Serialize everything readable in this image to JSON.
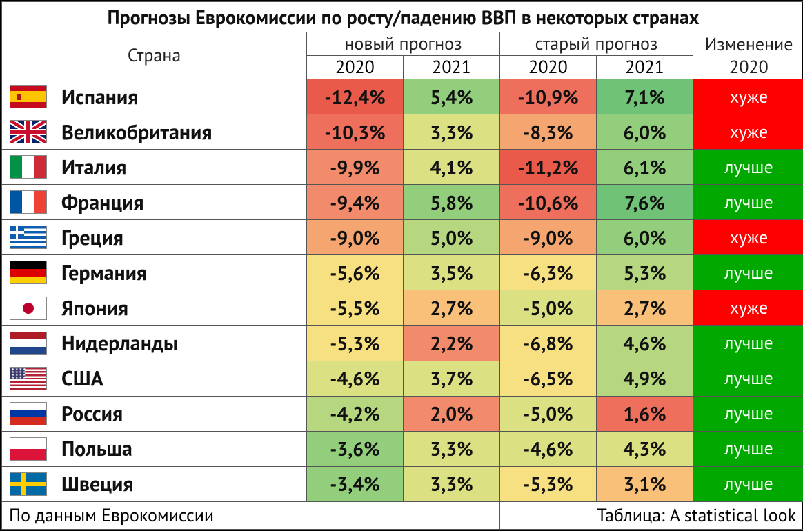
{
  "title": "Прогнозы Еврокомиссии по росту/падению ВВП в некоторых странах",
  "headers": {
    "country": "Страна",
    "new_forecast": "новый прогноз",
    "old_forecast": "старый прогноз",
    "change": "Изменение 2020",
    "y2020": "2020",
    "y2021": "2021"
  },
  "footer_left": "По данным Еврокомиссии",
  "footer_right": "Таблица: A statistical look",
  "change_colors": {
    "worse": "#ff0000",
    "better": "#00a800"
  },
  "change_labels": {
    "worse": "хуже",
    "better": "лучше"
  },
  "heat_palette": {
    "deep_red": "#ea5a4a",
    "red": "#ee6f5c",
    "orange_red": "#f28b6c",
    "orange": "#f5a670",
    "lt_orange": "#f9c07a",
    "yellow": "#f7e082",
    "yel_green": "#dbe082",
    "lt_green": "#b6d77f",
    "green": "#92ce7b",
    "deep_green": "#70c376"
  },
  "rows": [
    {
      "flag": "es",
      "country": "Испания",
      "new2020": "-12,4%",
      "new2020_c": "deep_red",
      "new2021": "5,4%",
      "new2021_c": "green",
      "old2020": "-10,9%",
      "old2020_c": "red",
      "old2021": "7,1%",
      "old2021_c": "deep_green",
      "change": "worse"
    },
    {
      "flag": "gb",
      "country": "Великобритания",
      "new2020": "-10,3%",
      "new2020_c": "red",
      "new2021": "3,3%",
      "new2021_c": "yel_green",
      "old2020": "-8,3%",
      "old2020_c": "orange",
      "old2021": "6,0%",
      "old2021_c": "green",
      "change": "worse"
    },
    {
      "flag": "it",
      "country": "Италия",
      "new2020": "-9,9%",
      "new2020_c": "orange_red",
      "new2021": "4,1%",
      "new2021_c": "yel_green",
      "old2020": "-11,2%",
      "old2020_c": "deep_red",
      "old2021": "6,1%",
      "old2021_c": "green",
      "change": "better"
    },
    {
      "flag": "fr",
      "country": "Франция",
      "new2020": "-9,4%",
      "new2020_c": "orange_red",
      "new2021": "5,8%",
      "new2021_c": "green",
      "old2020": "-10,6%",
      "old2020_c": "red",
      "old2021": "7,6%",
      "old2021_c": "deep_green",
      "change": "better"
    },
    {
      "flag": "gr",
      "country": "Греция",
      "new2020": "-9,0%",
      "new2020_c": "orange",
      "new2021": "5,0%",
      "new2021_c": "lt_green",
      "old2020": "-9,0%",
      "old2020_c": "orange",
      "old2021": "6,0%",
      "old2021_c": "green",
      "change": "worse"
    },
    {
      "flag": "de",
      "country": "Германия",
      "new2020": "-5,6%",
      "new2020_c": "yellow",
      "new2021": "3,5%",
      "new2021_c": "yel_green",
      "old2020": "-6,3%",
      "old2020_c": "yellow",
      "old2021": "5,3%",
      "old2021_c": "lt_green",
      "change": "better"
    },
    {
      "flag": "jp",
      "country": "Япония",
      "new2020": "-5,5%",
      "new2020_c": "yellow",
      "new2021": "2,7%",
      "new2021_c": "lt_orange",
      "old2020": "-5,0%",
      "old2020_c": "yel_green",
      "old2021": "2,7%",
      "old2021_c": "lt_orange",
      "change": "worse"
    },
    {
      "flag": "nl",
      "country": "Нидерланды",
      "new2020": "-5,3%",
      "new2020_c": "yellow",
      "new2021": "2,2%",
      "new2021_c": "orange_red",
      "old2020": "-6,8%",
      "old2020_c": "yellow",
      "old2021": "4,6%",
      "old2021_c": "lt_green",
      "change": "better"
    },
    {
      "flag": "us",
      "country": "США",
      "new2020": "-4,6%",
      "new2020_c": "yel_green",
      "new2021": "3,7%",
      "new2021_c": "yel_green",
      "old2020": "-6,5%",
      "old2020_c": "yellow",
      "old2021": "4,9%",
      "old2021_c": "lt_green",
      "change": "better"
    },
    {
      "flag": "ru",
      "country": "Россия",
      "new2020": "-4,2%",
      "new2020_c": "lt_green",
      "new2021": "2,0%",
      "new2021_c": "orange_red",
      "old2020": "-5,0%",
      "old2020_c": "yel_green",
      "old2021": "1,6%",
      "old2021_c": "red",
      "change": "better"
    },
    {
      "flag": "pl",
      "country": "Польша",
      "new2020": "-3,6%",
      "new2020_c": "green",
      "new2021": "3,3%",
      "new2021_c": "yel_green",
      "old2020": "-4,6%",
      "old2020_c": "yel_green",
      "old2021": "4,3%",
      "old2021_c": "yel_green",
      "change": "better"
    },
    {
      "flag": "se",
      "country": "Швеция",
      "new2020": "-3,4%",
      "new2020_c": "green",
      "new2021": "3,3%",
      "new2021_c": "yel_green",
      "old2020": "-5,3%",
      "old2020_c": "yellow",
      "old2021": "3,1%",
      "old2021_c": "lt_orange",
      "change": "better"
    }
  ],
  "flags": {
    "es": "<div style='position:absolute;inset:0;background:#c60b1e'></div><div style='position:absolute;left:0;right:0;top:25%;height:50%;background:#ffc400'></div><div style='position:absolute;left:18%;top:38%;width:7px;height:9px;background:#ad1519;border-radius:1px'></div>",
    "gb": "<div style='position:absolute;inset:0;background:#012169'></div><div style='position:absolute;inset:0;background:linear-gradient(to bottom right,transparent 42%,#fff 42%,#fff 58%,transparent 58%),linear-gradient(to bottom left,transparent 42%,#fff 42%,#fff 58%,transparent 58%)'></div><div style='position:absolute;inset:0;background:linear-gradient(to bottom right,transparent 46%,#c8102e 46%,#c8102e 54%,transparent 54%),linear-gradient(to bottom left,transparent 46%,#c8102e 46%,#c8102e 54%,transparent 54%)'></div><div style='position:absolute;left:0;right:0;top:36%;height:28%;background:#fff'></div><div style='position:absolute;top:0;bottom:0;left:40%;width:20%;background:#fff'></div><div style='position:absolute;left:0;right:0;top:42%;height:16%;background:#c8102e'></div><div style='position:absolute;top:0;bottom:0;left:45%;width:10%;background:#c8102e'></div>",
    "it": "<div style='position:absolute;top:0;bottom:0;left:0;width:33.4%;background:#009246'></div><div style='position:absolute;top:0;bottom:0;left:33.3%;width:33.4%;background:#fff'></div><div style='position:absolute;top:0;bottom:0;right:0;width:33.4%;background:#ce2b37'></div>",
    "fr": "<div style='position:absolute;top:0;bottom:0;left:0;width:33.4%;background:#0055a4'></div><div style='position:absolute;top:0;bottom:0;left:33.3%;width:33.4%;background:#fff'></div><div style='position:absolute;top:0;bottom:0;right:0;width:33.4%;background:#ef4135'></div>",
    "gr": "<div style='position:absolute;inset:0;background:repeating-linear-gradient(#0d5eaf 0 11.12%,#fff 11.12% 22.23%)'></div><div style='position:absolute;left:0;top:0;width:40%;height:55.6%;background:#0d5eaf'></div><div style='position:absolute;left:17%;top:0;width:6%;height:55.6%;background:#fff'></div><div style='position:absolute;left:0;top:22%;width:40%;height:11%;background:#fff'></div>",
    "de": "<div style='position:absolute;left:0;right:0;top:0;height:33.4%;background:#000'></div><div style='position:absolute;left:0;right:0;top:33.3%;height:33.4%;background:#dd0000'></div><div style='position:absolute;left:0;right:0;bottom:0;height:33.4%;background:#ffce00'></div>",
    "jp": "<div style='position:absolute;inset:0;background:#fff'></div><div style='position:absolute;left:50%;top:50%;width:16px;height:16px;margin:-8px 0 0 -8px;background:#bc002d;border-radius:50%'></div>",
    "nl": "<div style='position:absolute;left:0;right:0;top:0;height:33.4%;background:#ae1c28'></div><div style='position:absolute;left:0;right:0;top:33.3%;height:33.4%;background:#fff'></div><div style='position:absolute;left:0;right:0;bottom:0;height:33.4%;background:#21468b'></div>",
    "us": "<div style='position:absolute;inset:0;background:repeating-linear-gradient(#b22234 0 7.7%,#fff 7.7% 15.4%)'></div><div style='position:absolute;left:0;top:0;width:42%;height:53.8%;background:#3c3b6e'></div><div style='position:absolute;left:2px;top:1px;width:40%;color:#fff;font-size:5px;line-height:4px;letter-spacing:1px'>★★★★<br>★★★★<br>★★★★<br>★★★★</div>",
    "ru": "<div style='position:absolute;left:0;right:0;top:0;height:33.4%;background:#fff'></div><div style='position:absolute;left:0;right:0;top:33.3%;height:33.4%;background:#0039a6'></div><div style='position:absolute;left:0;right:0;bottom:0;height:33.4%;background:#d52b1e'></div>",
    "pl": "<div style='position:absolute;left:0;right:0;top:0;height:50%;background:#fff'></div><div style='position:absolute;left:0;right:0;bottom:0;height:50%;background:#dc143c'></div>",
    "se": "<div style='position:absolute;inset:0;background:#006aa7'></div><div style='position:absolute;top:0;bottom:0;left:30%;width:14%;background:#fecc00'></div><div style='position:absolute;left:0;right:0;top:40%;height:20%;background:#fecc00'></div>"
  }
}
